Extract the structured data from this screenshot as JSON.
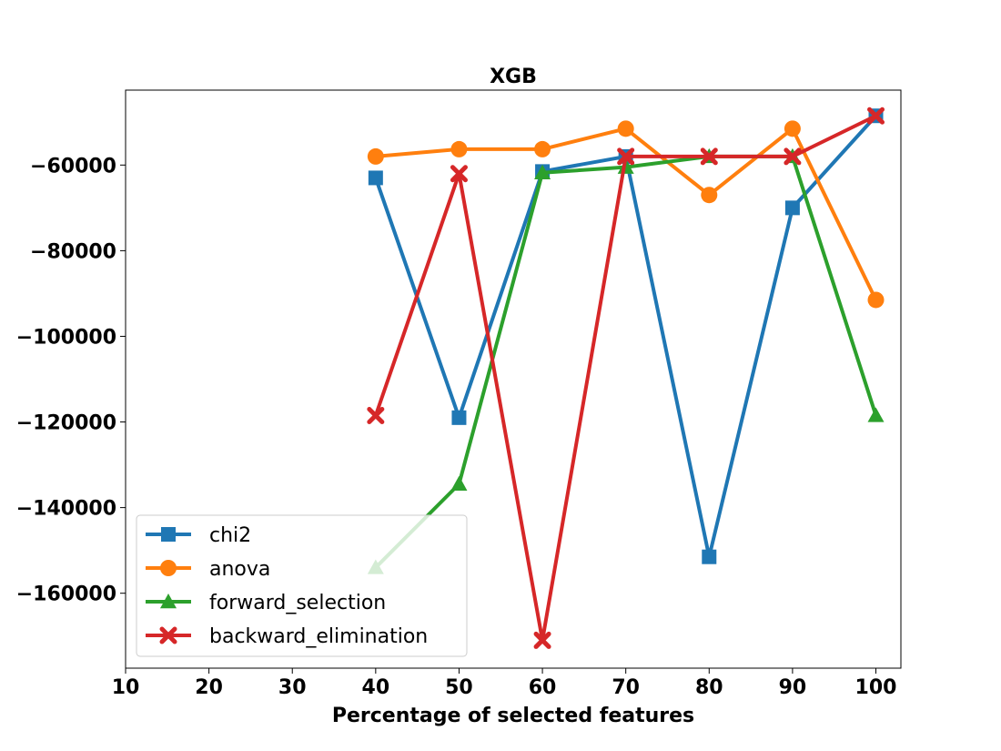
{
  "chart_data": {
    "type": "line",
    "title": "XGB",
    "xlabel": "Percentage of selected features",
    "ylabel": "",
    "xlim": [
      10,
      103
    ],
    "ylim": [
      -177500,
      -42500
    ],
    "xticks": [
      10,
      20,
      30,
      40,
      50,
      60,
      70,
      80,
      90,
      100
    ],
    "yticks": [
      -160000,
      -140000,
      -120000,
      -100000,
      -80000,
      -60000
    ],
    "ytick_labels": [
      "−160000",
      "−140000",
      "−120000",
      "−100000",
      "−80000",
      "−60000"
    ],
    "grid": false,
    "legend_position": "lower-left",
    "x": [
      40,
      50,
      60,
      70,
      80,
      90,
      100
    ],
    "series": [
      {
        "name": "chi2",
        "color": "#1f77b4",
        "marker": "square",
        "values": [
          -63000,
          -119000,
          -61500,
          -58000,
          -151500,
          -70000,
          -48500
        ]
      },
      {
        "name": "anova",
        "color": "#ff7f0e",
        "marker": "circle",
        "values": [
          -58000,
          -56300,
          -56300,
          -51500,
          -67000,
          -51500,
          -91500
        ]
      },
      {
        "name": "forward_selection",
        "color": "#2ca02c",
        "marker": "triangle",
        "values": [
          -154000,
          -134500,
          -61800,
          -60500,
          -58000,
          -58000,
          -118500
        ]
      },
      {
        "name": "backward_elimination",
        "color": "#d62728",
        "marker": "x",
        "values": [
          -118500,
          -62000,
          -171000,
          -58000,
          -58000,
          -58000,
          -48500
        ]
      }
    ]
  }
}
